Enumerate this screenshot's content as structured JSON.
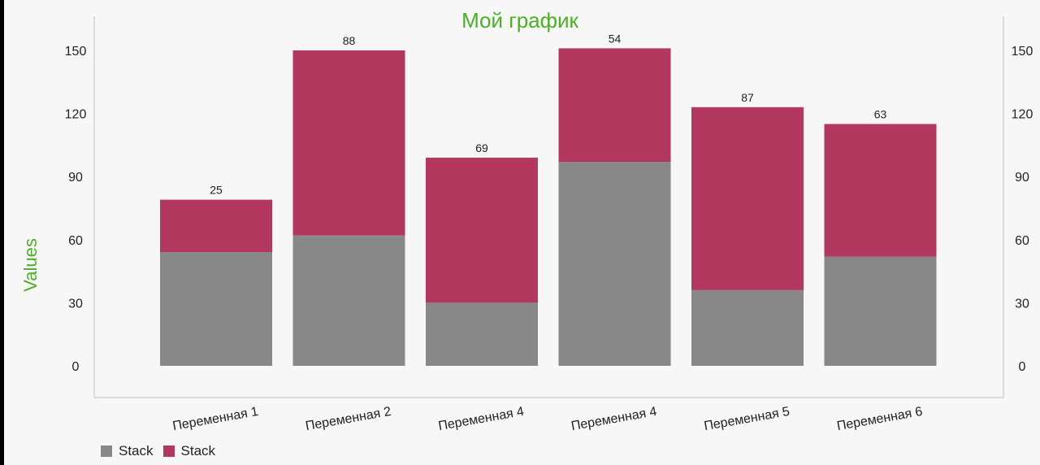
{
  "chart_data": {
    "type": "bar",
    "stacked": true,
    "title": "Мой график",
    "ylabel": "Values",
    "xlabel": "",
    "ylim": [
      -10,
      165
    ],
    "yticks": [
      0,
      30,
      60,
      90,
      120,
      150
    ],
    "right_axis": true,
    "grid": false,
    "legend_position": "bottom-left",
    "categories": [
      "Переменная 1",
      "Переменная 2",
      "Переменная 4",
      "Переменная 4",
      "Переменная 5",
      "Переменная 6"
    ],
    "series": [
      {
        "name": "Stack",
        "color": "#888888",
        "values": [
          54,
          62,
          30,
          97,
          36,
          52
        ]
      },
      {
        "name": "Stack",
        "color": "#b3385f",
        "values": [
          25,
          88,
          69,
          54,
          87,
          63
        ]
      }
    ]
  }
}
